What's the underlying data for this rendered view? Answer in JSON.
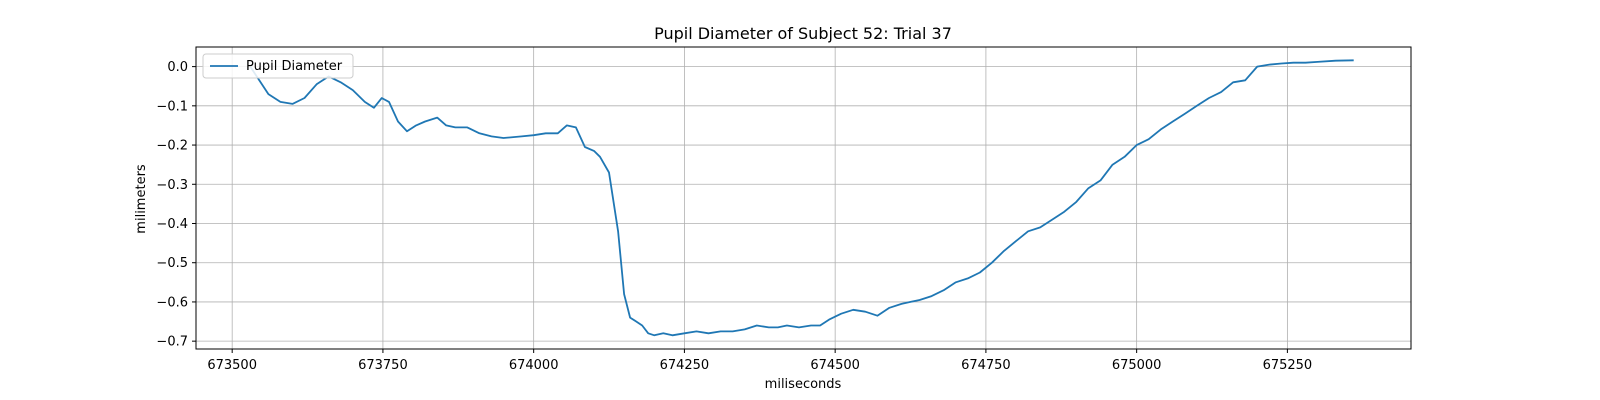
{
  "chart_data": {
    "type": "line",
    "title": "Pupil Diameter of Subject 52: Trial 37",
    "xlabel": "miliseconds",
    "ylabel": "milimeters",
    "xlim": [
      673440,
      675455
    ],
    "ylim": [
      -0.72,
      0.05
    ],
    "xticks": [
      673500,
      673750,
      674000,
      674250,
      674500,
      674750,
      675000,
      675250
    ],
    "yticks": [
      0.0,
      -0.1,
      -0.2,
      -0.3,
      -0.4,
      -0.5,
      -0.6,
      -0.7
    ],
    "ytick_labels": [
      "0.0",
      "−0.1",
      "−0.2",
      "−0.3",
      "−0.4",
      "−0.5",
      "−0.6",
      "−0.7"
    ],
    "grid": true,
    "legend_position": "top-left",
    "series": [
      {
        "name": "Pupil Diameter",
        "color": "#1f77b4",
        "x": [
          673530,
          673560,
          673580,
          673600,
          673620,
          673640,
          673660,
          673680,
          673700,
          673720,
          673735,
          673748,
          673760,
          673775,
          673790,
          673805,
          673820,
          673840,
          673855,
          673870,
          673890,
          673910,
          673930,
          673950,
          673980,
          674000,
          674020,
          674040,
          674055,
          674070,
          674085,
          674100,
          674110,
          674125,
          674140,
          674150,
          674160,
          674170,
          674180,
          674190,
          674200,
          674215,
          674230,
          674250,
          674270,
          674290,
          674310,
          674330,
          674350,
          674370,
          674390,
          674405,
          674420,
          674440,
          674460,
          674475,
          674490,
          674510,
          674530,
          674550,
          674570,
          674590,
          674610,
          674625,
          674640,
          674660,
          674680,
          674700,
          674720,
          674740,
          674760,
          674780,
          674800,
          674820,
          674840,
          674860,
          674880,
          674900,
          674920,
          674940,
          674960,
          674980,
          675000,
          675020,
          675040,
          675060,
          675080,
          675100,
          675120,
          675140,
          675160,
          675180,
          675200,
          675220,
          675240,
          675260,
          675280,
          675300,
          675330,
          675360
        ],
        "y": [
          0.0,
          -0.07,
          -0.09,
          -0.095,
          -0.08,
          -0.045,
          -0.025,
          -0.04,
          -0.06,
          -0.09,
          -0.105,
          -0.08,
          -0.09,
          -0.14,
          -0.165,
          -0.15,
          -0.14,
          -0.13,
          -0.15,
          -0.155,
          -0.155,
          -0.17,
          -0.178,
          -0.182,
          -0.178,
          -0.175,
          -0.17,
          -0.17,
          -0.15,
          -0.155,
          -0.205,
          -0.215,
          -0.23,
          -0.27,
          -0.42,
          -0.58,
          -0.64,
          -0.65,
          -0.66,
          -0.68,
          -0.685,
          -0.68,
          -0.685,
          -0.68,
          -0.675,
          -0.68,
          -0.675,
          -0.675,
          -0.67,
          -0.66,
          -0.665,
          -0.665,
          -0.66,
          -0.665,
          -0.66,
          -0.66,
          -0.645,
          -0.63,
          -0.62,
          -0.625,
          -0.635,
          -0.615,
          -0.605,
          -0.6,
          -0.595,
          -0.585,
          -0.57,
          -0.55,
          -0.54,
          -0.525,
          -0.5,
          -0.47,
          -0.445,
          -0.42,
          -0.41,
          -0.39,
          -0.37,
          -0.345,
          -0.31,
          -0.29,
          -0.25,
          -0.23,
          -0.2,
          -0.185,
          -0.16,
          -0.14,
          -0.12,
          -0.1,
          -0.08,
          -0.065,
          -0.04,
          -0.035,
          0.0,
          0.005,
          0.008,
          0.01,
          0.01,
          0.012,
          0.015,
          0.016
        ]
      }
    ]
  }
}
